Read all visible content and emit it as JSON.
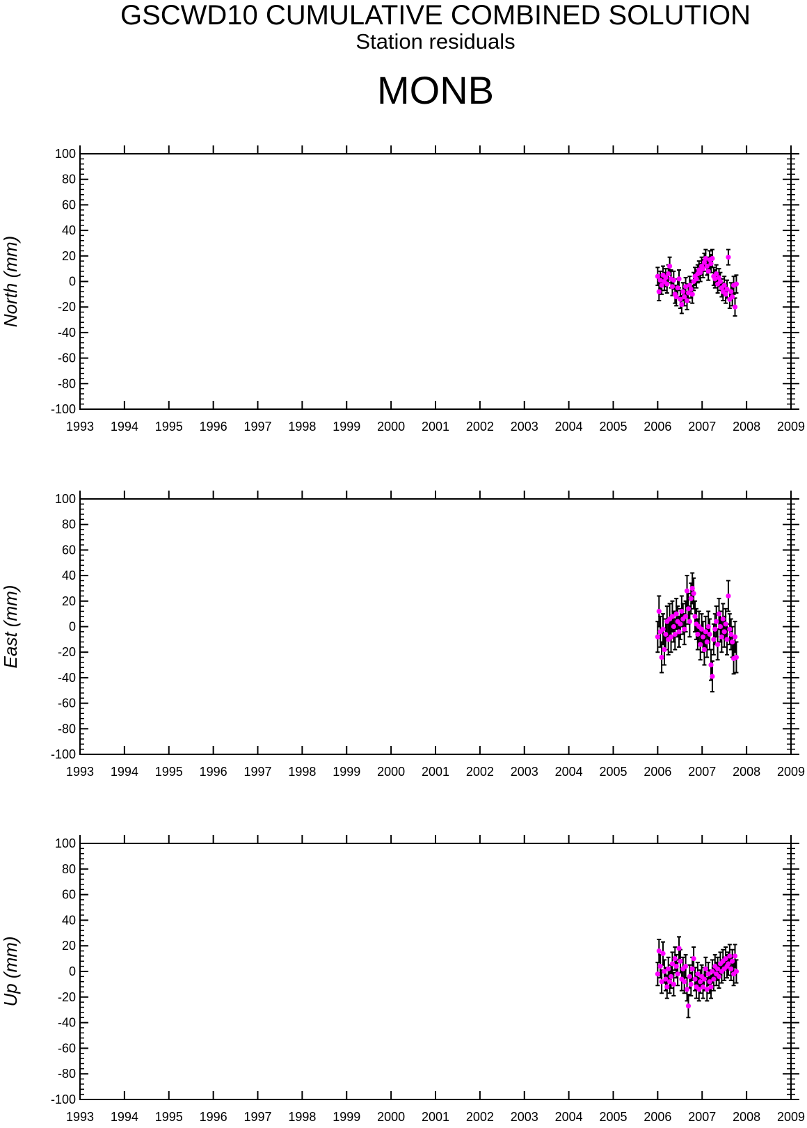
{
  "header": {
    "title": "GSCWD10 CUMULATIVE COMBINED SOLUTION",
    "subtitle": "Station residuals",
    "station": "MONB"
  },
  "colors": {
    "marker": "#ff00ff",
    "errorbar": "#000000",
    "axis": "#000000"
  },
  "chart_data": [
    {
      "type": "scatter",
      "ylabel": "North (mm)",
      "xlim": [
        1993,
        2009
      ],
      "ylim": [
        -100,
        100
      ],
      "x_ticks": [
        1993,
        1994,
        1995,
        1996,
        1997,
        1998,
        1999,
        2000,
        2001,
        2002,
        2003,
        2004,
        2005,
        2006,
        2007,
        2008,
        2009
      ],
      "y_ticks": [
        -100,
        -80,
        -60,
        -40,
        -20,
        0,
        20,
        40,
        60,
        80,
        100
      ],
      "error_bars": true,
      "grid": false,
      "points": [
        [
          2006.0,
          4,
          7
        ],
        [
          2006.03,
          -8,
          7
        ],
        [
          2006.06,
          1,
          7
        ],
        [
          2006.09,
          -3,
          7
        ],
        [
          2006.12,
          5,
          7
        ],
        [
          2006.15,
          0,
          7
        ],
        [
          2006.18,
          3,
          7
        ],
        [
          2006.21,
          -2,
          7
        ],
        [
          2006.24,
          6,
          7
        ],
        [
          2006.27,
          12,
          7
        ],
        [
          2006.3,
          2,
          7
        ],
        [
          2006.33,
          -4,
          7
        ],
        [
          2006.36,
          1,
          7
        ],
        [
          2006.39,
          -10,
          7
        ],
        [
          2006.42,
          -12,
          7
        ],
        [
          2006.45,
          -5,
          7
        ],
        [
          2006.48,
          2,
          7
        ],
        [
          2006.51,
          -14,
          7
        ],
        [
          2006.54,
          -18,
          7
        ],
        [
          2006.57,
          -8,
          7
        ],
        [
          2006.6,
          -12,
          7
        ],
        [
          2006.63,
          -4,
          7
        ],
        [
          2006.66,
          -15,
          7
        ],
        [
          2006.69,
          -9,
          7
        ],
        [
          2006.72,
          -3,
          7
        ],
        [
          2006.75,
          -6,
          7
        ],
        [
          2006.78,
          -10,
          7
        ],
        [
          2006.81,
          0,
          7
        ],
        [
          2006.84,
          4,
          7
        ],
        [
          2006.87,
          2,
          7
        ],
        [
          2006.9,
          6,
          7
        ],
        [
          2006.93,
          9,
          7
        ],
        [
          2006.96,
          7,
          7
        ],
        [
          2006.99,
          12,
          7
        ],
        [
          2007.02,
          10,
          7
        ],
        [
          2007.05,
          15,
          7
        ],
        [
          2007.08,
          18,
          7
        ],
        [
          2007.11,
          12,
          7
        ],
        [
          2007.14,
          8,
          7
        ],
        [
          2007.17,
          17,
          7
        ],
        [
          2007.2,
          14,
          7
        ],
        [
          2007.23,
          18,
          7
        ],
        [
          2007.26,
          4,
          7
        ],
        [
          2007.29,
          2,
          7
        ],
        [
          2007.32,
          6,
          7
        ],
        [
          2007.35,
          -2,
          7
        ],
        [
          2007.38,
          3,
          7
        ],
        [
          2007.41,
          0,
          7
        ],
        [
          2007.44,
          -5,
          7
        ],
        [
          2007.47,
          -8,
          7
        ],
        [
          2007.5,
          -3,
          7
        ],
        [
          2007.53,
          -10,
          7
        ],
        [
          2007.56,
          -6,
          7
        ],
        [
          2007.59,
          19,
          6
        ],
        [
          2007.62,
          -14,
          7
        ],
        [
          2007.65,
          -8,
          7
        ],
        [
          2007.68,
          -12,
          7
        ],
        [
          2007.71,
          -3,
          7
        ],
        [
          2007.74,
          -20,
          7
        ],
        [
          2007.77,
          -2,
          7
        ]
      ]
    },
    {
      "type": "scatter",
      "ylabel": "East (mm)",
      "xlim": [
        1993,
        2009
      ],
      "ylim": [
        -100,
        100
      ],
      "x_ticks": [
        1993,
        1994,
        1995,
        1996,
        1997,
        1998,
        1999,
        2000,
        2001,
        2002,
        2003,
        2004,
        2005,
        2006,
        2007,
        2008,
        2009
      ],
      "y_ticks": [
        -100,
        -80,
        -60,
        -40,
        -20,
        0,
        20,
        40,
        60,
        80,
        100
      ],
      "error_bars": true,
      "grid": false,
      "points": [
        [
          2006.0,
          -8,
          12
        ],
        [
          2006.03,
          12,
          12
        ],
        [
          2006.06,
          -4,
          12
        ],
        [
          2006.09,
          -24,
          12
        ],
        [
          2006.12,
          -2,
          12
        ],
        [
          2006.15,
          -18,
          12
        ],
        [
          2006.18,
          -6,
          12
        ],
        [
          2006.21,
          4,
          12
        ],
        [
          2006.24,
          -10,
          12
        ],
        [
          2006.27,
          6,
          12
        ],
        [
          2006.3,
          -8,
          12
        ],
        [
          2006.33,
          8,
          12
        ],
        [
          2006.36,
          0,
          12
        ],
        [
          2006.39,
          -6,
          12
        ],
        [
          2006.42,
          10,
          12
        ],
        [
          2006.45,
          4,
          12
        ],
        [
          2006.48,
          -4,
          12
        ],
        [
          2006.51,
          2,
          12
        ],
        [
          2006.54,
          12,
          12
        ],
        [
          2006.57,
          6,
          12
        ],
        [
          2006.6,
          -2,
          12
        ],
        [
          2006.63,
          8,
          12
        ],
        [
          2006.66,
          28,
          12
        ],
        [
          2006.69,
          14,
          12
        ],
        [
          2006.72,
          4,
          12
        ],
        [
          2006.75,
          22,
          12
        ],
        [
          2006.78,
          30,
          12
        ],
        [
          2006.81,
          26,
          12
        ],
        [
          2006.84,
          8,
          12
        ],
        [
          2006.87,
          2,
          12
        ],
        [
          2006.9,
          -6,
          12
        ],
        [
          2006.93,
          0,
          12
        ],
        [
          2006.96,
          -14,
          12
        ],
        [
          2006.99,
          -2,
          12
        ],
        [
          2007.02,
          -8,
          12
        ],
        [
          2007.05,
          -18,
          12
        ],
        [
          2007.08,
          -4,
          12
        ],
        [
          2007.11,
          -12,
          12
        ],
        [
          2007.14,
          0,
          12
        ],
        [
          2007.17,
          -6,
          12
        ],
        [
          2007.2,
          -30,
          12
        ],
        [
          2007.23,
          -39,
          12
        ],
        [
          2007.26,
          -10,
          12
        ],
        [
          2007.29,
          -2,
          12
        ],
        [
          2007.32,
          4,
          12
        ],
        [
          2007.35,
          -14,
          12
        ],
        [
          2007.38,
          10,
          12
        ],
        [
          2007.41,
          0,
          12
        ],
        [
          2007.44,
          -8,
          12
        ],
        [
          2007.47,
          6,
          12
        ],
        [
          2007.5,
          -4,
          12
        ],
        [
          2007.53,
          2,
          12
        ],
        [
          2007.56,
          -10,
          12
        ],
        [
          2007.59,
          24,
          12
        ],
        [
          2007.62,
          -2,
          12
        ],
        [
          2007.65,
          -6,
          12
        ],
        [
          2007.68,
          -12,
          12
        ],
        [
          2007.71,
          -25,
          12
        ],
        [
          2007.74,
          -8,
          12
        ],
        [
          2007.77,
          -24,
          12
        ]
      ]
    },
    {
      "type": "scatter",
      "ylabel": "Up (mm)",
      "xlim": [
        1993,
        2009
      ],
      "ylim": [
        -100,
        100
      ],
      "x_ticks": [
        1993,
        1994,
        1995,
        1996,
        1997,
        1998,
        1999,
        2000,
        2001,
        2002,
        2003,
        2004,
        2005,
        2006,
        2007,
        2008,
        2009
      ],
      "y_ticks": [
        -100,
        -80,
        -60,
        -40,
        -20,
        0,
        20,
        40,
        60,
        80,
        100
      ],
      "error_bars": true,
      "grid": false,
      "points": [
        [
          2006.0,
          -2,
          9
        ],
        [
          2006.03,
          16,
          9
        ],
        [
          2006.06,
          4,
          9
        ],
        [
          2006.09,
          -8,
          9
        ],
        [
          2006.12,
          14,
          9
        ],
        [
          2006.15,
          0,
          9
        ],
        [
          2006.18,
          -6,
          9
        ],
        [
          2006.21,
          -12,
          9
        ],
        [
          2006.24,
          2,
          9
        ],
        [
          2006.27,
          -8,
          9
        ],
        [
          2006.3,
          -4,
          9
        ],
        [
          2006.33,
          6,
          9
        ],
        [
          2006.36,
          -10,
          9
        ],
        [
          2006.39,
          10,
          9
        ],
        [
          2006.42,
          4,
          9
        ],
        [
          2006.45,
          -2,
          9
        ],
        [
          2006.48,
          18,
          9
        ],
        [
          2006.51,
          8,
          9
        ],
        [
          2006.54,
          -6,
          9
        ],
        [
          2006.57,
          2,
          9
        ],
        [
          2006.6,
          -8,
          9
        ],
        [
          2006.63,
          4,
          9
        ],
        [
          2006.66,
          -14,
          9
        ],
        [
          2006.69,
          -27,
          9
        ],
        [
          2006.72,
          -4,
          9
        ],
        [
          2006.75,
          -10,
          9
        ],
        [
          2006.78,
          2,
          9
        ],
        [
          2006.81,
          10,
          9
        ],
        [
          2006.84,
          -6,
          9
        ],
        [
          2006.87,
          -12,
          9
        ],
        [
          2006.9,
          -2,
          9
        ],
        [
          2006.93,
          -14,
          9
        ],
        [
          2006.96,
          -8,
          9
        ],
        [
          2006.99,
          -4,
          9
        ],
        [
          2007.02,
          -12,
          9
        ],
        [
          2007.05,
          -6,
          9
        ],
        [
          2007.08,
          2,
          9
        ],
        [
          2007.11,
          -14,
          9
        ],
        [
          2007.14,
          -2,
          9
        ],
        [
          2007.17,
          -8,
          9
        ],
        [
          2007.2,
          -12,
          9
        ],
        [
          2007.23,
          0,
          9
        ],
        [
          2007.26,
          -6,
          9
        ],
        [
          2007.29,
          4,
          9
        ],
        [
          2007.32,
          -2,
          9
        ],
        [
          2007.35,
          2,
          9
        ],
        [
          2007.38,
          -4,
          9
        ],
        [
          2007.41,
          6,
          9
        ],
        [
          2007.44,
          0,
          9
        ],
        [
          2007.47,
          8,
          9
        ],
        [
          2007.5,
          2,
          9
        ],
        [
          2007.53,
          10,
          9
        ],
        [
          2007.56,
          4,
          9
        ],
        [
          2007.59,
          6,
          9
        ],
        [
          2007.62,
          12,
          9
        ],
        [
          2007.65,
          2,
          9
        ],
        [
          2007.68,
          8,
          9
        ],
        [
          2007.71,
          -2,
          9
        ],
        [
          2007.74,
          12,
          9
        ],
        [
          2007.77,
          0,
          9
        ]
      ]
    }
  ]
}
